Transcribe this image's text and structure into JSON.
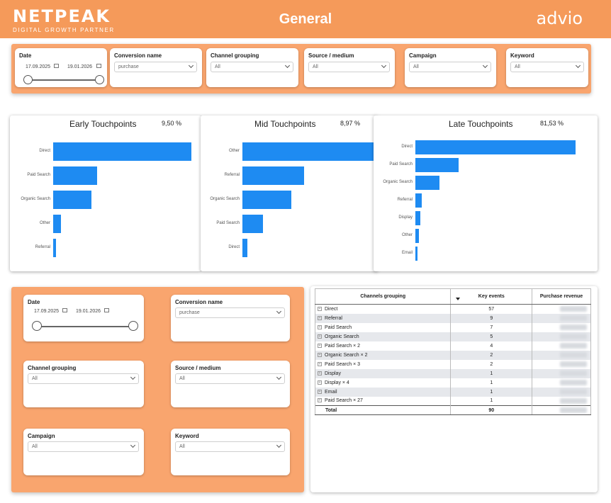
{
  "header": {
    "logo_left": "NETPEAK",
    "logo_tagline": "DIGITAL GROWTH PARTNER",
    "title": "General",
    "logo_right": "advio"
  },
  "filters": {
    "date": {
      "label": "Date",
      "from": "17.09.2025",
      "to": "19.01.2026"
    },
    "conversion": {
      "label": "Conversion name",
      "value": "purchase"
    },
    "channel": {
      "label": "Channel grouping",
      "value": "All"
    },
    "source": {
      "label": "Source / medium",
      "value": "All"
    },
    "campaign": {
      "label": "Campaign",
      "value": "All"
    },
    "keyword": {
      "label": "Keyword",
      "value": "All"
    }
  },
  "charts": {
    "early": {
      "title": "Early Touchpoints",
      "pct": "9,50 %"
    },
    "mid": {
      "title": "Mid Touchpoints",
      "pct": "8,97 %"
    },
    "late": {
      "title": "Late Touchpoints",
      "pct": "81,53 %"
    }
  },
  "chart_data": [
    {
      "type": "bar",
      "title": "Early Touchpoints",
      "categories": [
        "Direct",
        "Paid Search",
        "Organic Search",
        "Other",
        "Referral"
      ],
      "values": [
        100,
        32,
        27.5,
        5.5,
        2.3
      ]
    },
    {
      "type": "bar",
      "title": "Mid Touchpoints",
      "categories": [
        "Other",
        "Referral",
        "Organic Search",
        "Paid Search",
        "Direct"
      ],
      "values": [
        100,
        47,
        37,
        15.5,
        3.5
      ]
    },
    {
      "type": "bar",
      "title": "Late Touchpoints",
      "categories": [
        "Direct",
        "Paid Search",
        "Organic Search",
        "Referral",
        "Display",
        "Other",
        "Email"
      ],
      "values": [
        100,
        27,
        15,
        4,
        3,
        2,
        1.5
      ]
    }
  ],
  "table": {
    "headers": [
      "Channels grouping",
      "Key events",
      "Purchase revenue"
    ],
    "rows": [
      {
        "channel": "Direct",
        "events": "57"
      },
      {
        "channel": "Referral",
        "events": "9"
      },
      {
        "channel": "Paid Search",
        "events": "7"
      },
      {
        "channel": "Organic Search",
        "events": "5"
      },
      {
        "channel": "Paid Search × 2",
        "events": "4"
      },
      {
        "channel": "Organic Search × 2",
        "events": "2"
      },
      {
        "channel": "Paid Search × 3",
        "events": "2"
      },
      {
        "channel": "Display",
        "events": "1"
      },
      {
        "channel": "Display × 4",
        "events": "1"
      },
      {
        "channel": "Email",
        "events": "1"
      },
      {
        "channel": "Paid Search × 27",
        "events": "1"
      }
    ],
    "total": {
      "label": "Total",
      "events": "90"
    }
  },
  "colors": {
    "header": "#f59a5a",
    "panel": "#f9a56e",
    "bar": "#1e8bf2"
  }
}
